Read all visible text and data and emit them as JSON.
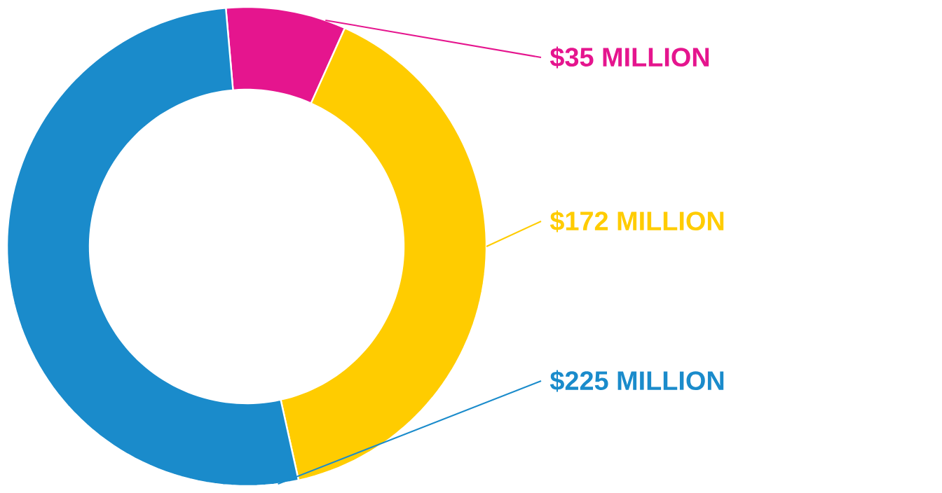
{
  "chart_data": {
    "type": "donut",
    "categories": [
      null,
      null,
      null
    ],
    "values": [
      35,
      172,
      225
    ],
    "colors": [
      "#e5158e",
      "#ffcc00",
      "#1a8bcb"
    ],
    "value_labels": [
      "$35 MILLION",
      "$172 MILLION",
      "$225 MILLION"
    ],
    "legend": false
  }
}
